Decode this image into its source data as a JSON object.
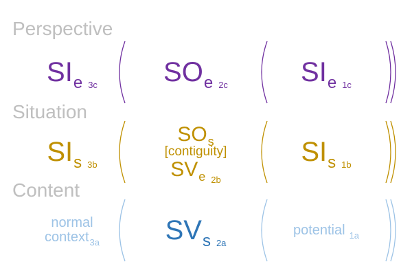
{
  "rows": [
    {
      "label": "Perspective",
      "cells": [
        {
          "lines": [
            {
              "text": "SI",
              "sub": "e",
              "index": "3c"
            }
          ]
        },
        {
          "lines": [
            {
              "text": "SO",
              "sub": "e",
              "index": "2c"
            }
          ]
        },
        {
          "lines": [
            {
              "text": "SI",
              "sub": "e",
              "index": "1c"
            }
          ]
        }
      ]
    },
    {
      "label": "Situation",
      "cells": [
        {
          "lines": [
            {
              "text": "SI",
              "sub": "s",
              "index": "3b"
            }
          ]
        },
        {
          "lines": [
            {
              "text": "SO",
              "sub": "s"
            },
            {
              "text": "[contiguity]"
            },
            {
              "text": "SV",
              "sub": "e",
              "index": "2b"
            }
          ]
        },
        {
          "lines": [
            {
              "text": "SI",
              "sub": "s",
              "index": "1b"
            }
          ]
        }
      ]
    },
    {
      "label": "Content",
      "cells": [
        {
          "lines": [
            {
              "text": "normal"
            },
            {
              "text": "context",
              "index": "3a"
            }
          ]
        },
        {
          "lines": [
            {
              "text": "SV",
              "sub": "s",
              "index": "2a"
            }
          ]
        },
        {
          "lines": [
            {
              "text": "potential",
              "index": "1a"
            }
          ]
        }
      ]
    }
  ]
}
